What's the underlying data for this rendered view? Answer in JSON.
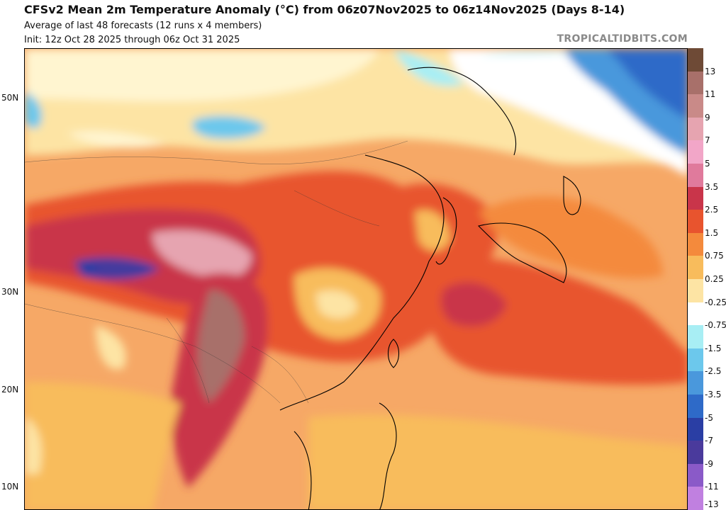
{
  "header": {
    "title": "CFSv2 Mean 2m Temperature Anomaly (°C) from 06z07Nov2025 to 06z14Nov2025 (Days 8-14)",
    "subtitle": "Average of last 48 forecasts (12 runs x 4 members)",
    "init": "Init: 12z Oct 28 2025 through 06z Oct 31 2025",
    "watermark": "TROPICALTIDBITS.COM"
  },
  "map": {
    "lat_labels": [
      "50N",
      "30N",
      "20N",
      "10N"
    ],
    "region": "East Asia"
  },
  "colorbar": {
    "labels": [
      "13",
      "11",
      "9",
      "7",
      "5",
      "3.5",
      "2.5",
      "1.5",
      "0.75",
      "0.25",
      "-0.25",
      "-0.75",
      "-1.5",
      "-2.5",
      "-3.5",
      "-5",
      "-7",
      "-9",
      "-11",
      "-13"
    ],
    "colors": [
      "#6e4a36",
      "#a8706a",
      "#c98a88",
      "#e6a4b0",
      "#f2a6c8",
      "#e07a9c",
      "#c9354a",
      "#e8542e",
      "#f48a3c",
      "#f8bc5c",
      "#fde4a4",
      "#ffffff",
      "#a8eef4",
      "#6cc8ec",
      "#4a98dc",
      "#2e6ac8",
      "#2a3ea4",
      "#4a3a9c",
      "#8a5ac8",
      "#c080e0"
    ]
  }
}
